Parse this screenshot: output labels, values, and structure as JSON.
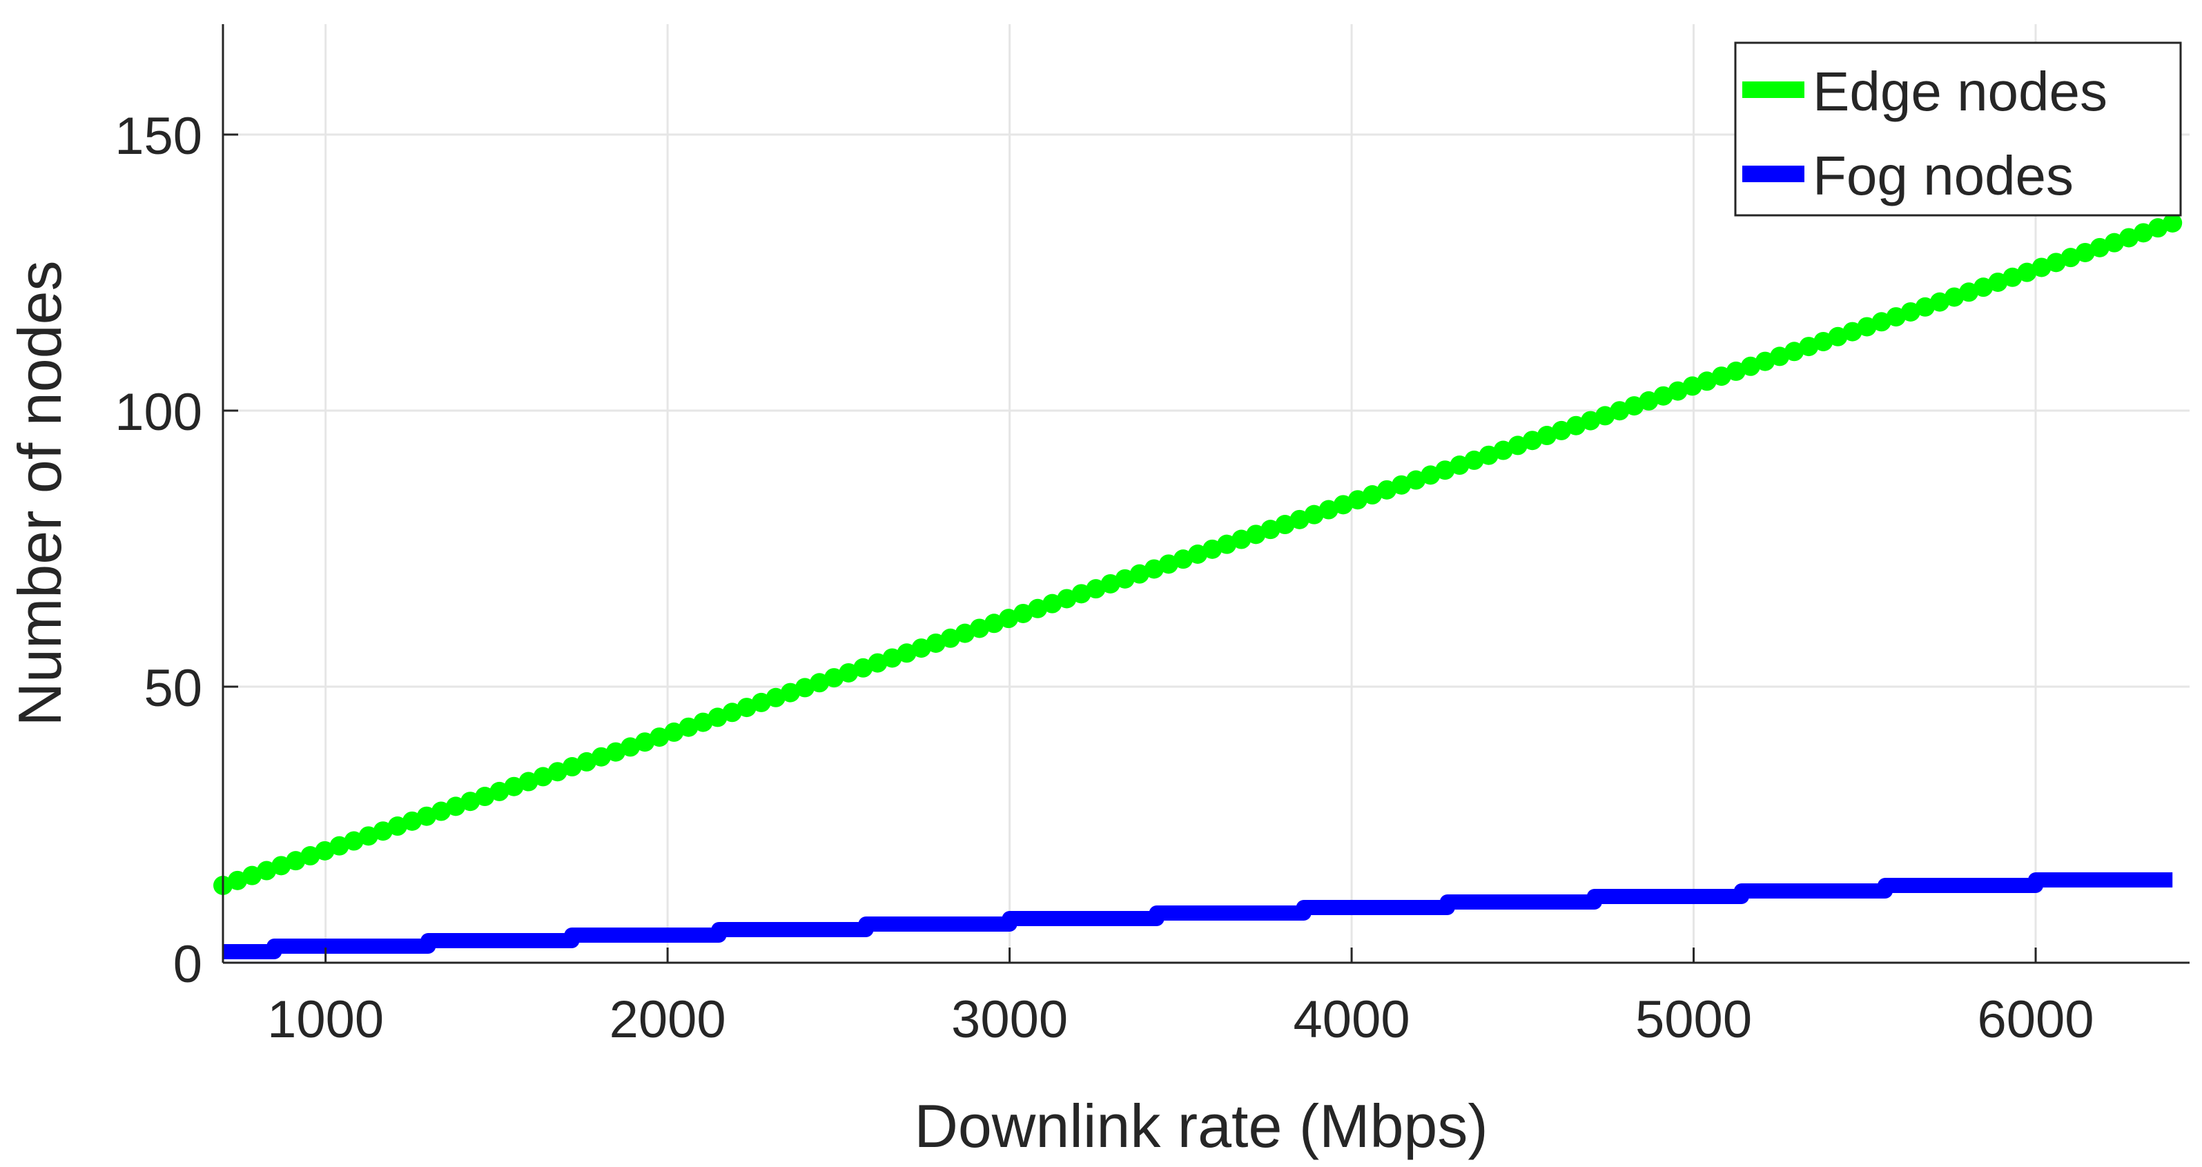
{
  "chart_data": {
    "type": "line",
    "title": "",
    "xlabel": "Downlink rate (Mbps)",
    "ylabel": "Number of nodes",
    "xlim": [
      700,
      6450
    ],
    "ylim": [
      0,
      170
    ],
    "xticks": [
      1000,
      2000,
      3000,
      4000,
      5000,
      6000
    ],
    "yticks": [
      0,
      50,
      100,
      150
    ],
    "xtick_labels": [
      "1000",
      "2000",
      "3000",
      "4000",
      "5000",
      "6000"
    ],
    "ytick_labels": [
      "0",
      "50",
      "100",
      "150"
    ],
    "grid": true,
    "legend": {
      "position": "top-right"
    },
    "series": [
      {
        "name": "Edge nodes",
        "color": "#00ff00",
        "style": "dots",
        "x_start": 700,
        "x_end": 6400,
        "points": [
          [
            700,
            14
          ],
          [
            6400,
            134
          ]
        ]
      },
      {
        "name": "Fog nodes",
        "color": "#0000ff",
        "style": "step",
        "points": [
          [
            700,
            2
          ],
          [
            850,
            3
          ],
          [
            1300,
            4
          ],
          [
            1720,
            5
          ],
          [
            2150,
            6
          ],
          [
            2580,
            7
          ],
          [
            3000,
            8
          ],
          [
            3430,
            9
          ],
          [
            3860,
            10
          ],
          [
            4280,
            11
          ],
          [
            4710,
            12
          ],
          [
            5140,
            13
          ],
          [
            5560,
            14
          ],
          [
            6000,
            15
          ],
          [
            6400,
            15
          ]
        ]
      }
    ]
  }
}
